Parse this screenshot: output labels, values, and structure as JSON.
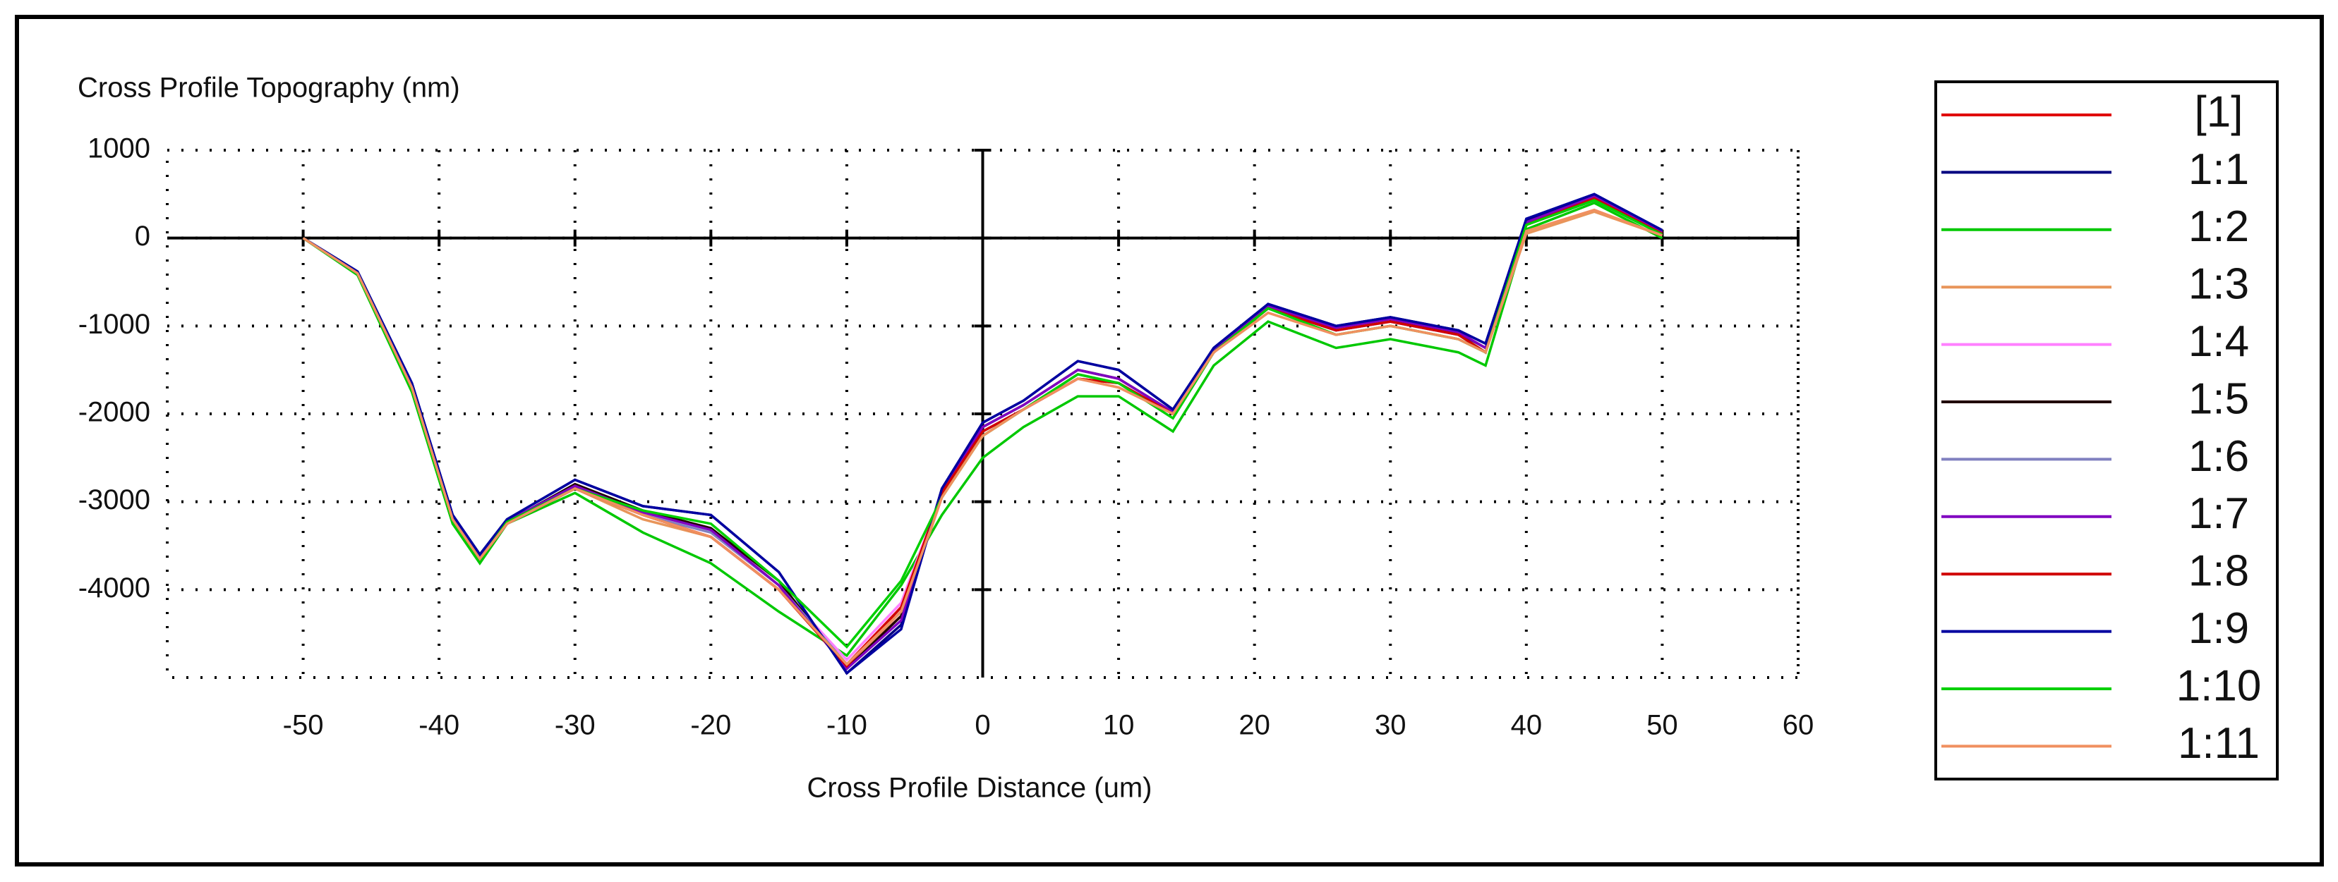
{
  "chart_data": {
    "type": "line",
    "y_label": "Cross Profile Topography (nm)",
    "x_label": "Cross Profile Distance (um)",
    "x": [
      -50,
      -46,
      -42,
      -39,
      -37,
      -35,
      -30,
      -25,
      -20,
      -15,
      -10,
      -6,
      -3,
      0,
      3,
      7,
      10,
      14,
      17,
      21,
      26,
      30,
      35,
      37,
      40,
      45,
      50
    ],
    "xlim": [
      -60,
      60
    ],
    "ylim": [
      -5000,
      1000
    ],
    "xticks": [
      -50,
      -40,
      -30,
      -20,
      -10,
      0,
      10,
      20,
      30,
      40,
      50,
      60
    ],
    "yticks": [
      1000,
      0,
      -1000,
      -2000,
      -3000,
      -4000
    ],
    "grid": true,
    "legend": "right",
    "series": [
      {
        "name": "[1]",
        "color": "#e00000",
        "values": [
          0,
          -400,
          -1700,
          -3200,
          -3650,
          -3250,
          -2850,
          -3150,
          -3400,
          -4000,
          -4850,
          -4200,
          -2900,
          -2200,
          -1950,
          -1600,
          -1650,
          -2000,
          -1300,
          -800,
          -1050,
          -950,
          -1100,
          -1300,
          150,
          450,
          50
        ]
      },
      {
        "name": "1:1",
        "color": "#000080",
        "values": [
          0,
          -380,
          -1650,
          -3150,
          -3600,
          -3200,
          -2750,
          -3050,
          -3150,
          -3800,
          -4950,
          -4400,
          -2850,
          -2100,
          -1850,
          -1400,
          -1500,
          -1950,
          -1250,
          -750,
          -1000,
          -900,
          -1050,
          -1200,
          200,
          480,
          80
        ]
      },
      {
        "name": "1:2",
        "color": "#00c800",
        "values": [
          0,
          -420,
          -1750,
          -3250,
          -3700,
          -3250,
          -2900,
          -3350,
          -3700,
          -4250,
          -4750,
          -3950,
          -3150,
          -2500,
          -2150,
          -1800,
          -1800,
          -2200,
          -1450,
          -950,
          -1250,
          -1150,
          -1300,
          -1450,
          100,
          400,
          0
        ]
      },
      {
        "name": "1:3",
        "color": "#e8955a",
        "values": [
          0,
          -400,
          -1700,
          -3200,
          -3650,
          -3250,
          -2850,
          -3200,
          -3400,
          -4000,
          -4850,
          -4300,
          -2950,
          -2250,
          -1950,
          -1600,
          -1700,
          -2000,
          -1300,
          -850,
          -1100,
          -1000,
          -1150,
          -1300,
          50,
          300,
          30
        ]
      },
      {
        "name": "1:4",
        "color": "#ff80ff",
        "values": [
          0,
          -400,
          -1700,
          -3200,
          -3650,
          -3250,
          -2850,
          -3150,
          -3350,
          -3950,
          -4800,
          -4150,
          -2900,
          -2200,
          -1950,
          -1600,
          -1650,
          -2000,
          -1300,
          -800,
          -1050,
          -950,
          -1100,
          -1300,
          150,
          430,
          50
        ]
      },
      {
        "name": "1:5",
        "color": "#200000",
        "values": [
          0,
          -390,
          -1680,
          -3180,
          -3620,
          -3230,
          -2800,
          -3100,
          -3300,
          -3900,
          -4900,
          -4300,
          -2900,
          -2150,
          -1900,
          -1500,
          -1600,
          -1980,
          -1280,
          -780,
          -1020,
          -920,
          -1080,
          -1250,
          180,
          460,
          60
        ]
      },
      {
        "name": "1:6",
        "color": "#8080c0",
        "values": [
          0,
          -410,
          -1700,
          -3200,
          -3650,
          -3250,
          -2850,
          -3150,
          -3350,
          -3950,
          -4850,
          -4250,
          -2900,
          -2200,
          -1950,
          -1550,
          -1650,
          -2000,
          -1300,
          -800,
          -1050,
          -950,
          -1100,
          -1300,
          150,
          440,
          50
        ]
      },
      {
        "name": "1:7",
        "color": "#8000c0",
        "values": [
          0,
          -390,
          -1680,
          -3180,
          -3640,
          -3220,
          -2820,
          -3120,
          -3320,
          -3950,
          -4900,
          -4350,
          -2880,
          -2150,
          -1900,
          -1500,
          -1600,
          -1980,
          -1270,
          -780,
          -1020,
          -920,
          -1070,
          -1250,
          180,
          470,
          70
        ]
      },
      {
        "name": "1:8",
        "color": "#d00000",
        "values": [
          0,
          -400,
          -1700,
          -3200,
          -3650,
          -3250,
          -2850,
          -3150,
          -3400,
          -4000,
          -4870,
          -4200,
          -2900,
          -2200,
          -1950,
          -1600,
          -1650,
          -2000,
          -1300,
          -800,
          -1050,
          -950,
          -1100,
          -1300,
          150,
          450,
          50
        ]
      },
      {
        "name": "1:9",
        "color": "#0000a0",
        "values": [
          0,
          -380,
          -1650,
          -3150,
          -3600,
          -3200,
          -2750,
          -3050,
          -3150,
          -3800,
          -4950,
          -4450,
          -2850,
          -2100,
          -1850,
          -1400,
          -1500,
          -1950,
          -1250,
          -750,
          -1000,
          -900,
          -1050,
          -1200,
          220,
          500,
          90
        ]
      },
      {
        "name": "1:10",
        "color": "#00d000",
        "values": [
          0,
          -410,
          -1720,
          -3220,
          -3660,
          -3230,
          -2850,
          -3100,
          -3250,
          -3900,
          -4650,
          -3900,
          -2950,
          -2250,
          -1950,
          -1550,
          -1650,
          -2050,
          -1300,
          -800,
          -1100,
          -1000,
          -1150,
          -1300,
          150,
          430,
          40
        ]
      },
      {
        "name": "1:11",
        "color": "#f09060",
        "values": [
          0,
          -400,
          -1700,
          -3200,
          -3650,
          -3250,
          -2850,
          -3150,
          -3400,
          -4000,
          -4850,
          -4250,
          -2950,
          -2250,
          -1950,
          -1600,
          -1700,
          -2000,
          -1300,
          -850,
          -1100,
          -1000,
          -1150,
          -1300,
          80,
          320,
          30
        ]
      }
    ]
  }
}
